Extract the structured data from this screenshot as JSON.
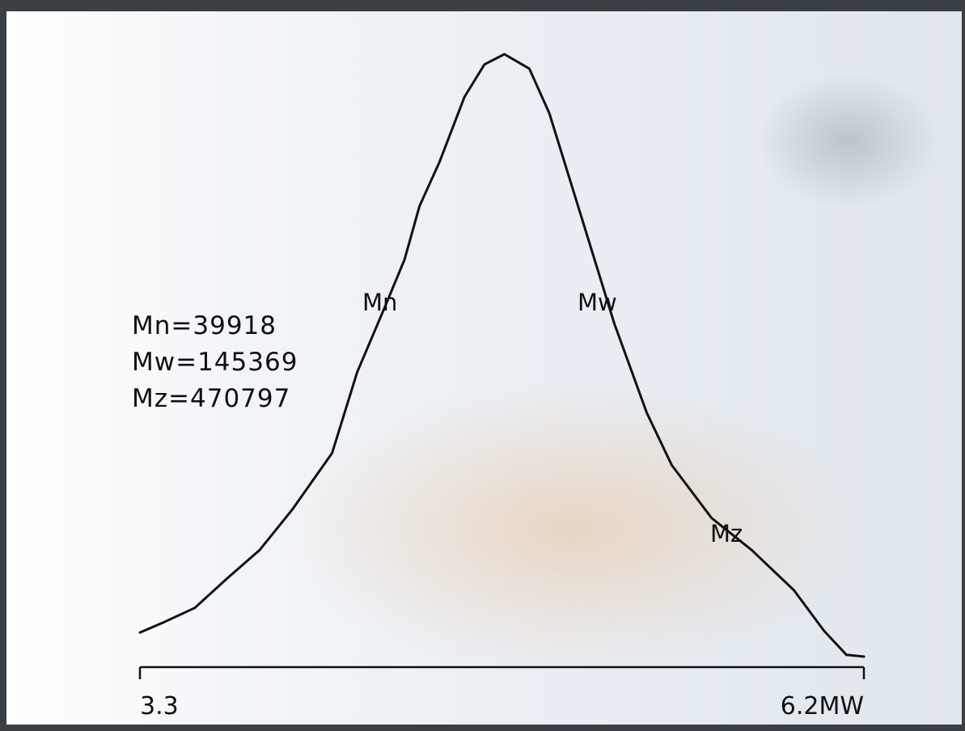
{
  "chart_data": {
    "type": "line",
    "annotations": [
      "Mn=39918",
      "Mw=145369",
      "Mz=470797"
    ],
    "markers": [
      "Mn",
      "Mw",
      "Mz"
    ],
    "x": [
      3.3,
      3.39,
      3.52,
      3.65,
      3.78,
      3.91,
      4.07,
      4.17,
      4.28,
      4.36,
      4.42,
      4.5,
      4.6,
      4.68,
      4.76,
      4.86,
      4.94,
      5.04,
      5.13,
      5.2,
      5.33,
      5.43,
      5.59,
      5.75,
      5.92,
      6.04,
      6.13,
      6.2
    ],
    "values": [
      4.0,
      5.6,
      8.1,
      13.0,
      17.7,
      24.4,
      33.8,
      47.2,
      57.9,
      65.9,
      74.8,
      82.1,
      92.9,
      98.3,
      100,
      97.6,
      90.2,
      76.8,
      64.7,
      55.3,
      40.5,
      31.8,
      23.0,
      17.7,
      11.0,
      4.3,
      0.3,
      0
    ],
    "color": "#111111",
    "xlim": [
      3.3,
      6.2
    ],
    "xticks": [
      3.3,
      {
        "value": 6.2,
        "label": "6.2MW"
      }
    ],
    "ylim": [
      0,
      100
    ]
  }
}
